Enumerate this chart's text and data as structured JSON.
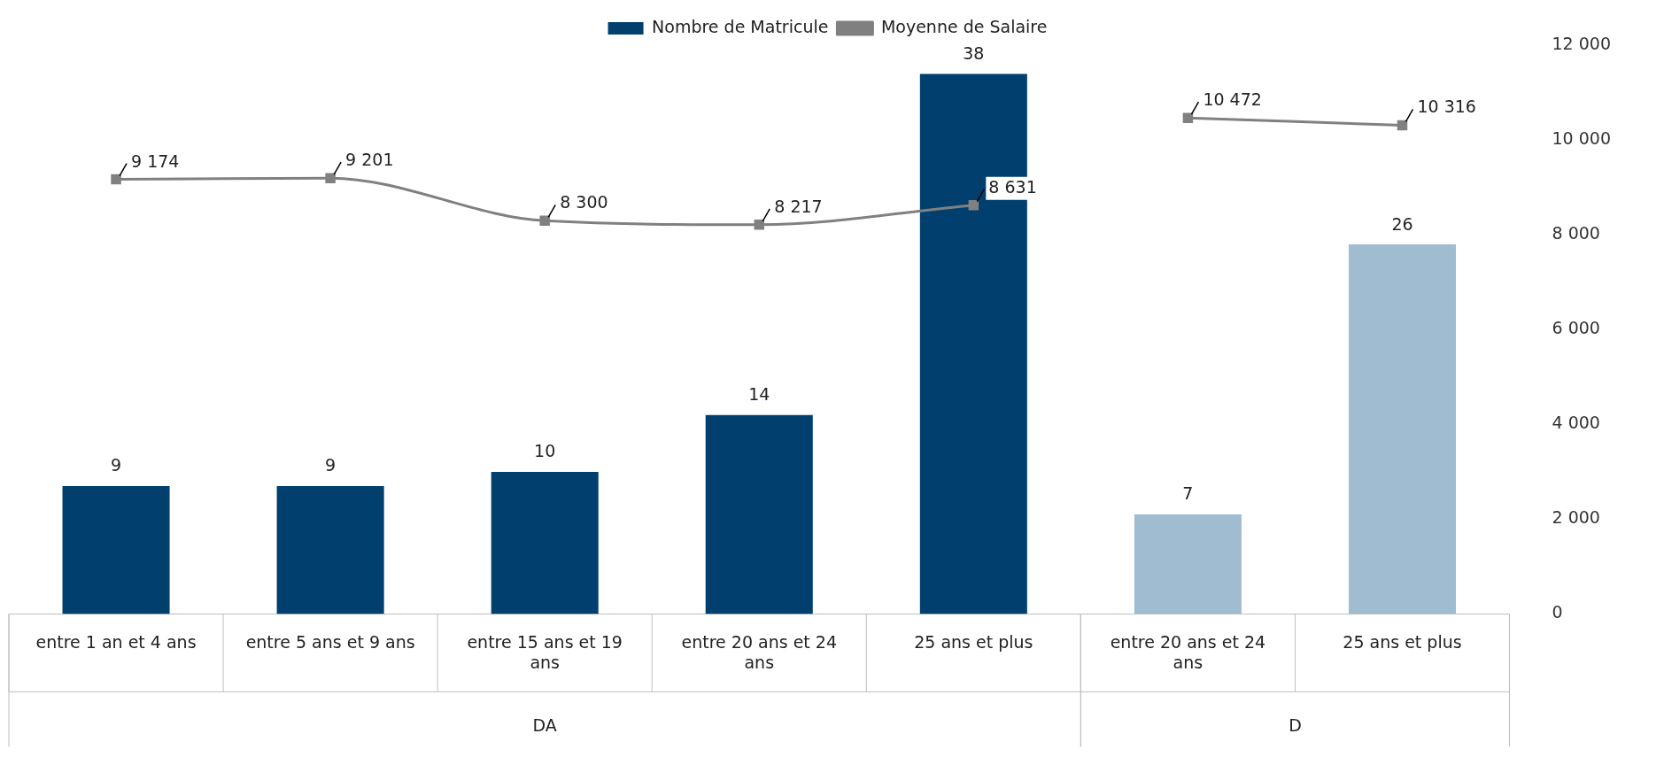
{
  "chart_data": {
    "type": "bar",
    "categories": [
      "entre 1 an et 4 ans",
      "entre 5 ans et 9 ans",
      "entre 15 ans et 19 ans",
      "entre 20 ans et 24 ans",
      "25 ans et plus",
      "entre 20 ans et 24 ans",
      "25 ans et plus"
    ],
    "series": [
      {
        "name": "Nombre de Matricule",
        "colors": [
          "#003f6e",
          "#003f6e",
          "#003f6e",
          "#003f6e",
          "#003f6e",
          "#a0bcd0",
          "#a0bcd0"
        ],
        "color": "#003f6e",
        "values": [
          9,
          9,
          10,
          14,
          38,
          7,
          26
        ]
      },
      {
        "name": "Moyenne de Salaire",
        "type": "line",
        "axis": "y2",
        "color": "#808080",
        "values": [
          9174,
          9201,
          8300,
          8217,
          8631,
          null,
          null
        ]
      },
      {
        "type": "line",
        "axis": "y2",
        "color": "#808080",
        "values": [
          null,
          null,
          null,
          null,
          null,
          10472,
          10316
        ]
      }
    ],
    "y2lim": [
      0,
      12000
    ],
    "y2ticks": [
      0,
      2000,
      4000,
      6000,
      8000,
      10000,
      12000
    ],
    "annotations": [
      "DA",
      "D"
    ],
    "data_labels": true,
    "legend": "top",
    "grid": false,
    "marker": "square",
    "line_style": "solid"
  }
}
